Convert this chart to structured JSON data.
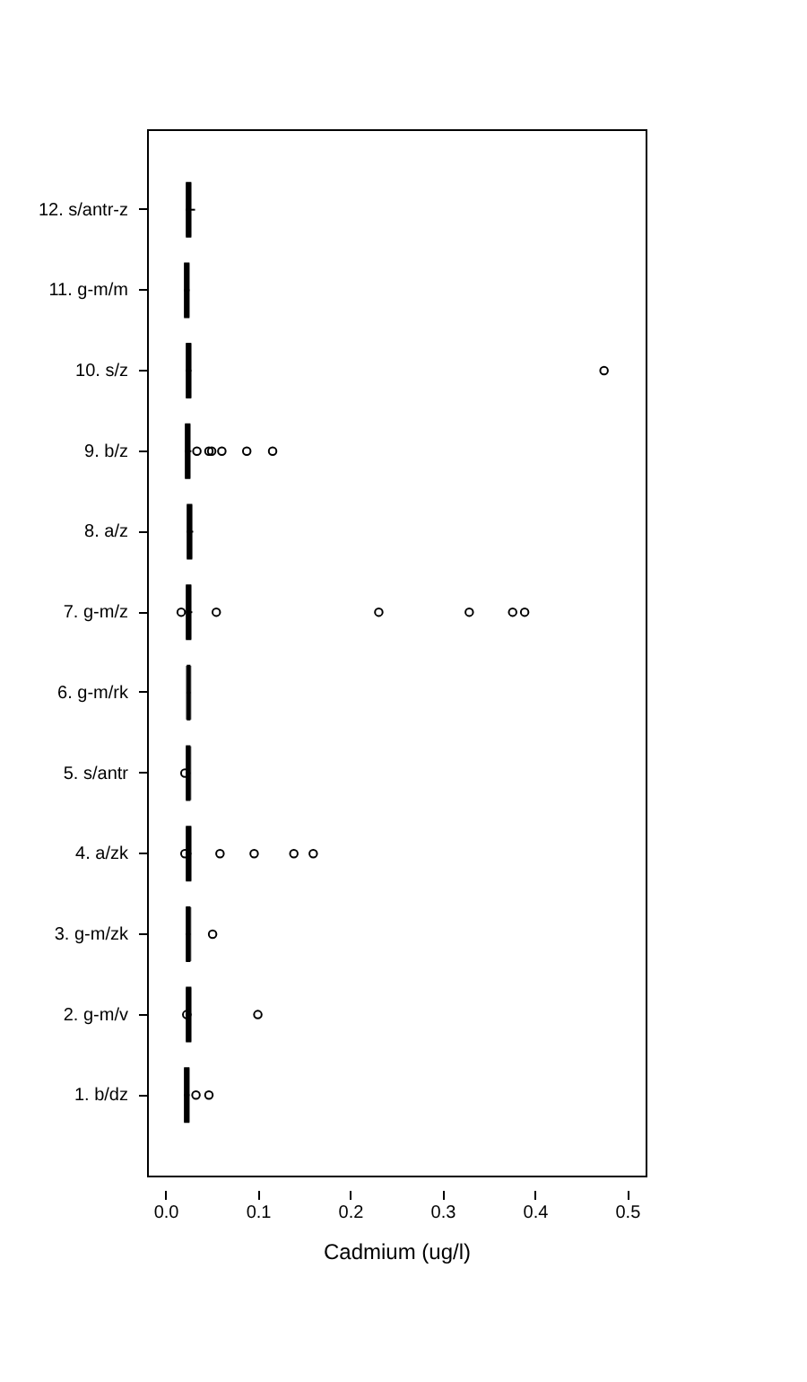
{
  "chart_data": {
    "type": "box",
    "orientation": "horizontal",
    "xlabel": "Cadmium (ug/l)",
    "categories": [
      "12. s/antr-z",
      "11. g-m/m",
      "10. s/z",
      "9. b/z",
      "8. a/z",
      "7. g-m/z",
      "6. g-m/rk",
      "5. s/antr",
      "4. a/zk",
      "3. g-m/zk",
      "2. g-m/v",
      "1. b/dz"
    ],
    "boxes": [
      {
        "low": 0.022,
        "q1": 0.023,
        "median": 0.025,
        "q3": 0.027,
        "high": 0.032
      },
      {
        "low": 0.02,
        "q1": 0.021,
        "median": 0.023,
        "q3": 0.025,
        "high": 0.026
      },
      {
        "low": 0.022,
        "q1": 0.023,
        "median": 0.025,
        "q3": 0.027,
        "high": 0.028,
        "outliers": [
          0.475
        ]
      },
      {
        "low": 0.021,
        "q1": 0.022,
        "median": 0.024,
        "q3": 0.026,
        "high": 0.028,
        "outliers": [
          0.034,
          0.047,
          0.05,
          0.061,
          0.088,
          0.116
        ]
      },
      {
        "low": 0.023,
        "q1": 0.024,
        "median": 0.026,
        "q3": 0.028,
        "high": 0.03
      },
      {
        "low": 0.022,
        "q1": 0.023,
        "median": 0.025,
        "q3": 0.027,
        "high": 0.029,
        "outliers": [
          0.017,
          0.055,
          0.231,
          0.329,
          0.376,
          0.389
        ]
      },
      {
        "low": 0.023,
        "q1": 0.024,
        "median": 0.025,
        "q3": 0.026,
        "high": 0.027
      },
      {
        "low": 0.022,
        "q1": 0.023,
        "median": 0.025,
        "q3": 0.026,
        "high": 0.027,
        "outliers": [
          0.021
        ]
      },
      {
        "low": 0.022,
        "q1": 0.023,
        "median": 0.025,
        "q3": 0.027,
        "high": 0.028,
        "outliers": [
          0.021,
          0.059,
          0.096,
          0.139,
          0.16
        ]
      },
      {
        "low": 0.022,
        "q1": 0.023,
        "median": 0.025,
        "q3": 0.026,
        "high": 0.027,
        "outliers": [
          0.051
        ]
      },
      {
        "low": 0.022,
        "q1": 0.023,
        "median": 0.025,
        "q3": 0.027,
        "high": 0.028,
        "outliers": [
          0.023,
          0.1
        ]
      },
      {
        "low": 0.02,
        "q1": 0.021,
        "median": 0.023,
        "q3": 0.025,
        "high": 0.026,
        "outliers": [
          0.033,
          0.047
        ]
      }
    ],
    "xlim": [
      -0.02,
      0.52
    ],
    "xticks": [
      {
        "value": 0,
        "label": "0.0"
      },
      0.1,
      0.2,
      0.3,
      0.4,
      0.5
    ],
    "grid": false
  }
}
